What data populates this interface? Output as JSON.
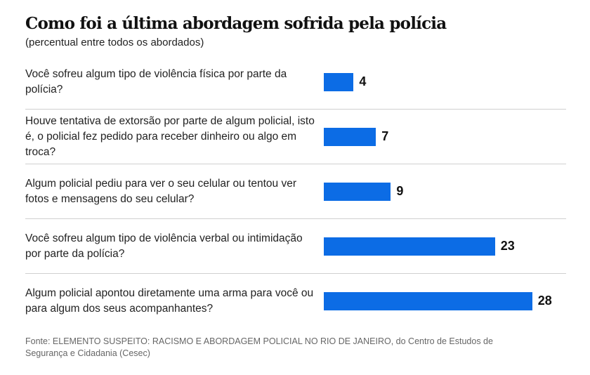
{
  "chart_data": {
    "type": "bar",
    "orientation": "horizontal",
    "title": "Como foi a última abordagem sofrida pela polícia",
    "subtitle": "(percentual entre todos os abordados)",
    "categories": [
      "Você sofreu algum tipo de violência física por parte da polícia?",
      "Houve tentativa de extorsão por parte de algum policial, isto é, o policial fez pedido para receber dinheiro ou algo em troca?",
      "Algum policial pediu para ver o seu celular ou tentou ver fotos e mensagens do seu celular?",
      "Você sofreu algum tipo de violência verbal ou intimidação por parte da polícia?",
      "Algum policial apontou diretamente uma arma para você ou para algum dos seus acompanhantes?"
    ],
    "values": [
      4,
      7,
      9,
      23,
      28
    ],
    "bar_color": "#0c6ce5",
    "source": "Fonte: ELEMENTO SUSPEITO: RACISMO E ABORDAGEM POLICIAL NO RIO DE JANEIRO, do Centro de Estudos de Segurança e Cidadania (Cesec)"
  }
}
